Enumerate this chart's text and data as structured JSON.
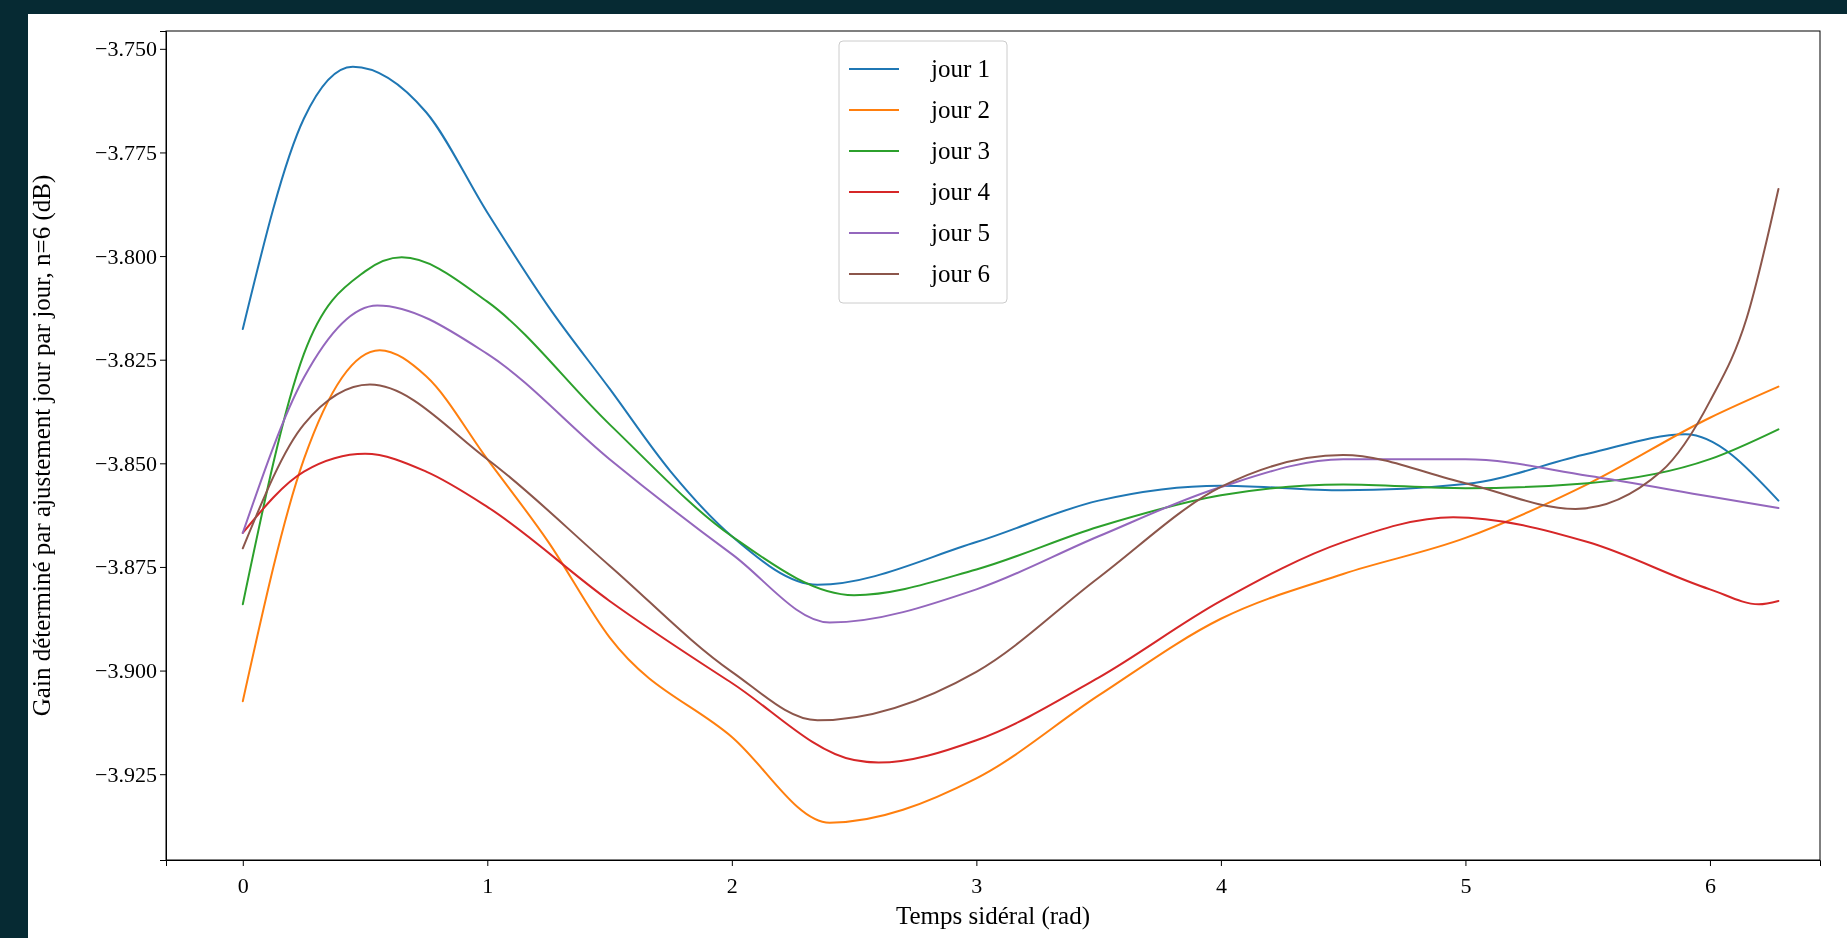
{
  "chart_data": {
    "type": "line",
    "xlabel": "Temps sidéral (rad)",
    "ylabel": "Gain déterminé par ajustement jour par jour, n=6 (dB)",
    "xlim": [
      -0.314,
      6.45
    ],
    "ylim": [
      -3.9457,
      -3.7457
    ],
    "xticks": [
      0,
      1,
      2,
      3,
      4,
      5,
      6
    ],
    "yticks": [
      {
        "value": -3.75,
        "label": "−3.750"
      },
      {
        "value": -3.775,
        "label": "−3.775"
      },
      {
        "value": -3.8,
        "label": "−3.800"
      },
      {
        "value": -3.825,
        "label": "−3.825"
      },
      {
        "value": -3.85,
        "label": "−3.850"
      },
      {
        "value": -3.875,
        "label": "−3.875"
      },
      {
        "value": -3.9,
        "label": "−3.900"
      },
      {
        "value": -3.925,
        "label": "−3.925"
      }
    ],
    "grid": false,
    "legend": "top",
    "marker": "none",
    "line_style": "solid",
    "series": [
      {
        "name": "jour 1",
        "color": "#1f77b4",
        "x": [
          0,
          0.25,
          0.45,
          0.75,
          1,
          1.25,
          1.5,
          1.75,
          2,
          2.35,
          3,
          3.5,
          4,
          4.5,
          5,
          5.5,
          5.9,
          6.28
        ],
        "values": [
          -3.8176,
          -3.7668,
          -3.7543,
          -3.7653,
          -3.7895,
          -3.8122,
          -3.832,
          -3.852,
          -3.8676,
          -3.8793,
          -3.869,
          -3.859,
          -3.8554,
          -3.8565,
          -3.855,
          -3.8477,
          -3.843,
          -3.859
        ]
      },
      {
        "name": "jour 2",
        "color": "#ff7f0e",
        "x": [
          0,
          0.25,
          0.56,
          0.75,
          1,
          1.25,
          1.5,
          2,
          2.4,
          3,
          3.5,
          4,
          4.5,
          5,
          5.5,
          6,
          6.28
        ],
        "values": [
          -3.9074,
          -3.849,
          -3.8227,
          -3.829,
          -3.849,
          -3.869,
          -3.892,
          -3.916,
          -3.9367,
          -3.926,
          -3.906,
          -3.8875,
          -3.8767,
          -3.868,
          -3.855,
          -3.839,
          -3.8315
        ]
      },
      {
        "name": "jour 3",
        "color": "#2ca02c",
        "x": [
          0,
          0.25,
          0.5,
          0.65,
          1,
          1.5,
          2,
          2.5,
          3,
          3.5,
          4,
          4.5,
          5,
          5.5,
          6,
          6.28
        ],
        "values": [
          -3.884,
          -3.8236,
          -3.8037,
          -3.8003,
          -3.811,
          -3.8406,
          -3.8676,
          -3.8818,
          -3.8756,
          -3.8653,
          -3.8577,
          -3.8551,
          -3.856,
          -3.8548,
          -3.849,
          -3.8418
        ]
      },
      {
        "name": "jour 4",
        "color": "#d62728",
        "x": [
          0,
          0.25,
          0.5,
          0.75,
          1,
          1.5,
          2,
          2.5,
          2.6,
          3,
          3.5,
          4,
          4.5,
          4.95,
          5.5,
          6,
          6.2,
          6.28
        ],
        "values": [
          -3.8668,
          -3.852,
          -3.8477,
          -3.852,
          -3.8605,
          -3.8832,
          -3.903,
          -3.9216,
          -3.9222,
          -3.9168,
          -3.9017,
          -3.8832,
          -3.869,
          -3.863,
          -3.869,
          -3.8804,
          -3.884,
          -3.8832
        ]
      },
      {
        "name": "jour 5",
        "color": "#9467bd",
        "x": [
          0,
          0.25,
          0.55,
          1,
          1.5,
          2,
          2.4,
          3,
          3.5,
          4,
          4.5,
          5,
          5.5,
          6,
          6.28
        ],
        "values": [
          -3.8668,
          -3.8293,
          -3.8119,
          -3.8236,
          -3.849,
          -3.8719,
          -3.8884,
          -3.8804,
          -3.8676,
          -3.8557,
          -3.849,
          -3.849,
          -3.853,
          -3.858,
          -3.8608
        ]
      },
      {
        "name": "jour 6",
        "color": "#8c564b",
        "x": [
          0,
          0.25,
          0.52,
          1,
          1.5,
          2,
          2.35,
          3,
          3.5,
          4,
          4.5,
          5,
          5.45,
          5.8,
          6,
          6.15,
          6.28
        ],
        "values": [
          -3.8705,
          -3.8406,
          -3.831,
          -3.849,
          -3.8747,
          -3.9003,
          -3.912,
          -3.9003,
          -3.8776,
          -3.8557,
          -3.848,
          -3.8548,
          -3.861,
          -3.852,
          -3.835,
          -3.815,
          -3.7838
        ]
      }
    ]
  }
}
